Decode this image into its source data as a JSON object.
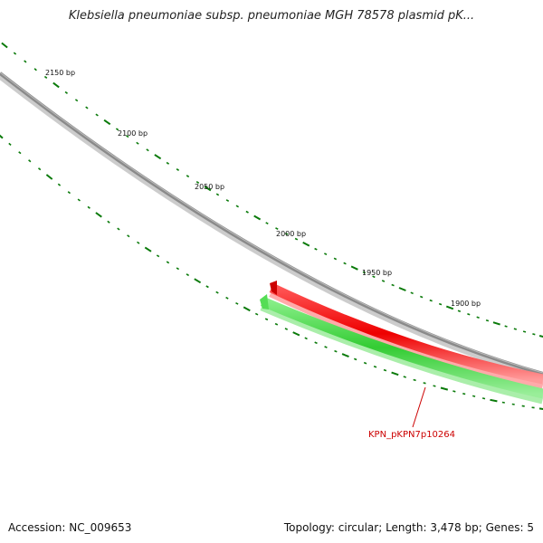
{
  "title": "Klebsiella pneumoniae subsp. pneumoniae MGH 78578 plasmid pK...",
  "ruler": {
    "labels": [
      "2150 bp",
      "2100 bp",
      "2050 bp",
      "2000 bp",
      "1950 bp",
      "1900 bp"
    ],
    "tick_color": "#0a7a0a"
  },
  "features": {
    "backbone_color": "#888888",
    "forward_gene_color": "#ee0000",
    "reverse_gene_color": "#33cc33",
    "gene_label": "KPN_pKPN7p10264"
  },
  "footer": {
    "accession": "Accession: NC_009653",
    "summary": "Topology: circular; Length: 3,478 bp; Genes: 5"
  }
}
